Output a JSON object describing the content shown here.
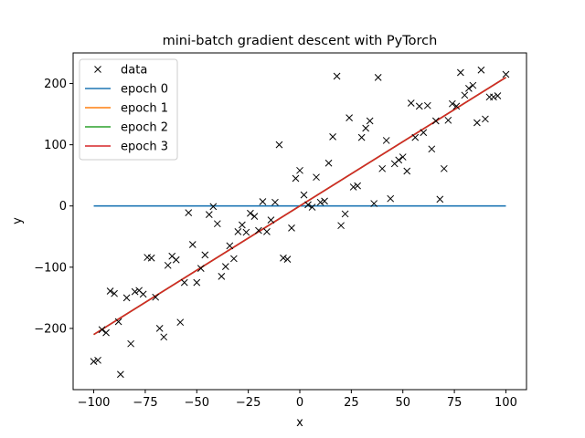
{
  "chart_data": {
    "type": "scatter",
    "title": "mini-batch gradient descent with PyTorch",
    "xlabel": "x",
    "ylabel": "y",
    "xlim": [
      -110,
      110
    ],
    "ylim": [
      -300,
      250
    ],
    "xticks": [
      -100,
      -75,
      -50,
      -25,
      0,
      25,
      50,
      75,
      100
    ],
    "yticks": [
      -200,
      -100,
      0,
      100,
      200
    ],
    "xtick_labels": [
      "−100",
      "−75",
      "−50",
      "−25",
      "0",
      "25",
      "50",
      "75",
      "100"
    ],
    "ytick_labels": [
      "−200",
      "−100",
      "0",
      "100",
      "200"
    ],
    "legend": {
      "placement": "top-left",
      "entries": [
        "data",
        "epoch 0",
        "epoch 1",
        "epoch 2",
        "epoch 3"
      ]
    },
    "scatter": {
      "name": "data",
      "marker": "x",
      "color": "#000000",
      "points": [
        [
          -100,
          -254
        ],
        [
          -98,
          -252
        ],
        [
          -96,
          -202
        ],
        [
          -94,
          -207
        ],
        [
          -92,
          -139
        ],
        [
          -90,
          -143
        ],
        [
          -88,
          -189
        ],
        [
          -87,
          -275
        ],
        [
          -84,
          -150
        ],
        [
          -82,
          -225
        ],
        [
          -80,
          -140
        ],
        [
          -78,
          -138
        ],
        [
          -76,
          -144
        ],
        [
          -74,
          -84
        ],
        [
          -72,
          -85
        ],
        [
          -70,
          -149
        ],
        [
          -68,
          -200
        ],
        [
          -66,
          -214
        ],
        [
          -64,
          -97
        ],
        [
          -62,
          -82
        ],
        [
          -60,
          -88
        ],
        [
          -58,
          -190
        ],
        [
          -56,
          -125
        ],
        [
          -54,
          -11
        ],
        [
          -52,
          -63
        ],
        [
          -50,
          -125
        ],
        [
          -48,
          -102
        ],
        [
          -46,
          -80
        ],
        [
          -44,
          -14
        ],
        [
          -42,
          -1
        ],
        [
          -40,
          -29
        ],
        [
          -38,
          -115
        ],
        [
          -36,
          -99
        ],
        [
          -34,
          -65
        ],
        [
          -32,
          -86
        ],
        [
          -30,
          -42
        ],
        [
          -28,
          -31
        ],
        [
          -26,
          -43
        ],
        [
          -24,
          -12
        ],
        [
          -22,
          -17
        ],
        [
          -20,
          -40
        ],
        [
          -18,
          7
        ],
        [
          -16,
          -42
        ],
        [
          -14,
          -23
        ],
        [
          -12,
          6
        ],
        [
          -10,
          100
        ],
        [
          -8,
          -85
        ],
        [
          -6,
          -87
        ],
        [
          -4,
          -36
        ],
        [
          -2,
          45
        ],
        [
          0,
          58
        ],
        [
          2,
          18
        ],
        [
          4,
          2
        ],
        [
          6,
          -2
        ],
        [
          8,
          47
        ],
        [
          10,
          6
        ],
        [
          12,
          8
        ],
        [
          14,
          70
        ],
        [
          16,
          113
        ],
        [
          18,
          212
        ],
        [
          20,
          -32
        ],
        [
          22,
          -13
        ],
        [
          24,
          144
        ],
        [
          26,
          31
        ],
        [
          28,
          33
        ],
        [
          30,
          112
        ],
        [
          32,
          127
        ],
        [
          34,
          139
        ],
        [
          36,
          4
        ],
        [
          38,
          210
        ],
        [
          40,
          61
        ],
        [
          42,
          107
        ],
        [
          44,
          12
        ],
        [
          46,
          69
        ],
        [
          48,
          75
        ],
        [
          50,
          80
        ],
        [
          52,
          57
        ],
        [
          54,
          168
        ],
        [
          56,
          112
        ],
        [
          58,
          163
        ],
        [
          60,
          120
        ],
        [
          62,
          164
        ],
        [
          64,
          93
        ],
        [
          66,
          139
        ],
        [
          68,
          11
        ],
        [
          70,
          61
        ],
        [
          72,
          140
        ],
        [
          74,
          167
        ],
        [
          76,
          163
        ],
        [
          78,
          218
        ],
        [
          80,
          181
        ],
        [
          82,
          192
        ],
        [
          84,
          197
        ],
        [
          86,
          136
        ],
        [
          88,
          222
        ],
        [
          90,
          142
        ],
        [
          92,
          178
        ],
        [
          94,
          178
        ],
        [
          96,
          180
        ],
        [
          100,
          215
        ]
      ]
    },
    "series": [
      {
        "name": "epoch 0",
        "color": "#1f77b4",
        "x": [
          -100,
          100
        ],
        "y": [
          0,
          0
        ]
      },
      {
        "name": "epoch 1",
        "color": "#ff7f0e",
        "x": [
          -100,
          100
        ],
        "y": [
          -210,
          210
        ]
      },
      {
        "name": "epoch 2",
        "color": "#2ca02c",
        "x": [
          -100,
          100
        ],
        "y": [
          -210,
          210
        ]
      },
      {
        "name": "epoch 3",
        "color": "#d62728",
        "x": [
          -100,
          100
        ],
        "y": [
          -210,
          210
        ]
      }
    ]
  }
}
